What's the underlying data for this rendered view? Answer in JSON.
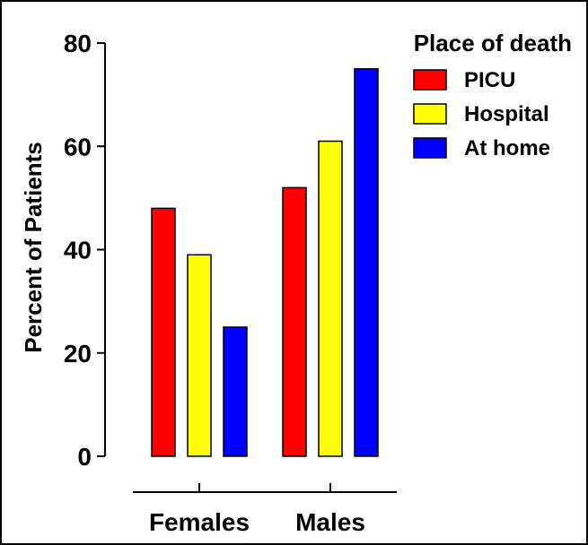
{
  "chart_data": {
    "type": "bar",
    "ylabel": "Percent of Patients",
    "ylim": [
      0,
      80
    ],
    "yticks": [
      "0",
      "20",
      "40",
      "60",
      "80"
    ],
    "categories": [
      "Females",
      "Males"
    ],
    "legend": {
      "title": "Place of death",
      "placement": "top-right"
    },
    "series": [
      {
        "name": "PICU",
        "color": "#ff0000",
        "values": [
          48,
          52
        ]
      },
      {
        "name": "Hospital",
        "color": "#ffff00",
        "values": [
          39,
          61
        ]
      },
      {
        "name": "At home",
        "color": "#0000ff",
        "values": [
          25,
          75
        ]
      }
    ],
    "grid": false
  }
}
